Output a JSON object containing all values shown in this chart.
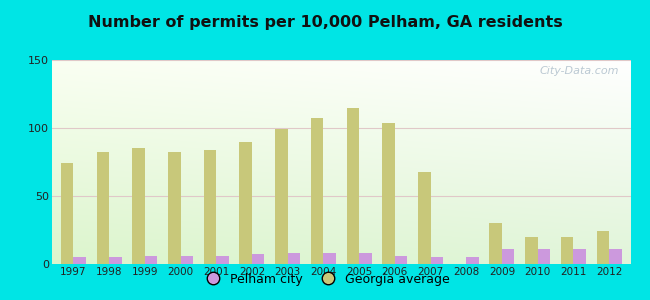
{
  "title": "Number of permits per 10,000 Pelham, GA residents",
  "years": [
    1997,
    1998,
    1999,
    2000,
    2001,
    2002,
    2003,
    2004,
    2005,
    2006,
    2007,
    2008,
    2009,
    2010,
    2011,
    2012
  ],
  "pelham_values": [
    5,
    5,
    6,
    6,
    6,
    7,
    8,
    8,
    8,
    6,
    5,
    5,
    11,
    11,
    11,
    11
  ],
  "georgia_values": [
    74,
    82,
    85,
    82,
    84,
    90,
    99,
    107,
    115,
    104,
    68,
    0,
    30,
    20,
    20,
    24
  ],
  "pelham_color": "#cc99dd",
  "georgia_color": "#c8c87a",
  "bg_color": "#00e5e5",
  "ylim": [
    0,
    150
  ],
  "yticks": [
    0,
    50,
    100,
    150
  ],
  "bar_width": 0.35,
  "watermark": "City-Data.com",
  "legend_pelham": "Pelham city",
  "legend_georgia": "Georgia average"
}
